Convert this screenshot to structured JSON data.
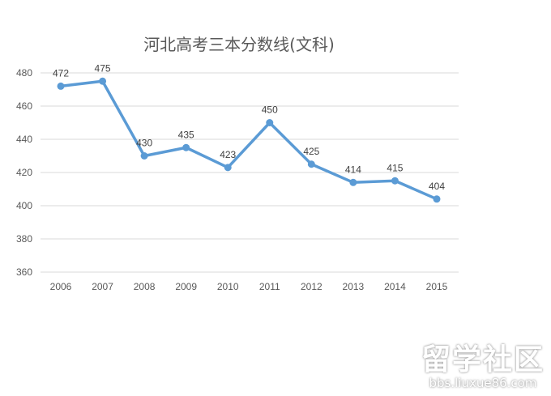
{
  "chart_data": {
    "type": "line",
    "title": "河北高考三本分数线(文科)",
    "xlabel": "",
    "ylabel": "",
    "categories": [
      "2006",
      "2007",
      "2008",
      "2009",
      "2010",
      "2011",
      "2012",
      "2013",
      "2014",
      "2015"
    ],
    "series": [
      {
        "name": "河北高考三本分数线(文科)",
        "values": [
          472,
          475,
          430,
          435,
          423,
          450,
          425,
          414,
          415,
          404
        ],
        "color": "#5b9bd5"
      }
    ],
    "yticks": [
      360,
      380,
      400,
      420,
      440,
      460,
      480
    ],
    "ylim": [
      360,
      480
    ],
    "grid": true,
    "legend": "none",
    "data_labels": true
  },
  "watermark": {
    "main": "留学社区",
    "sub": "bbs.liuxue86.com"
  }
}
